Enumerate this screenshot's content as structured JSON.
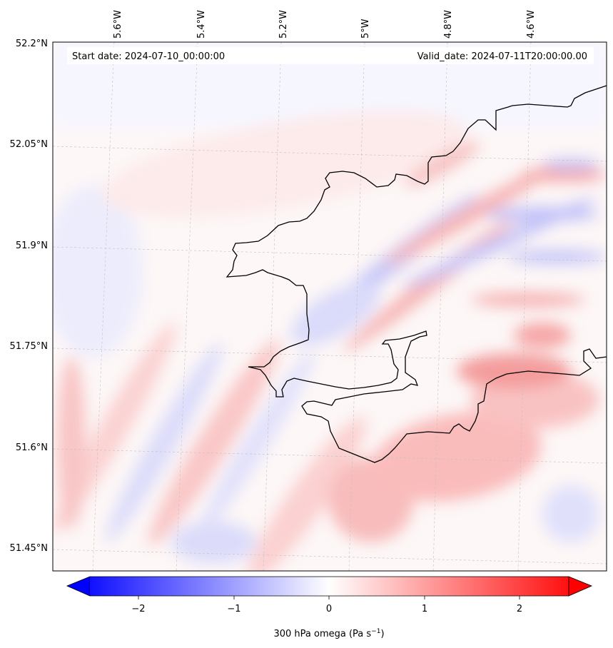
{
  "header": {
    "start_date": "Start date: 2024-07-10_00:00:00",
    "valid_date": "Valid_date: 2024-07-11T20:00:00.00"
  },
  "axes": {
    "lon_labels": [
      "5.6°W",
      "5.4°W",
      "5.2°W",
      "5°W",
      "4.8°W",
      "4.6°W"
    ],
    "lat_labels": [
      "52.2°N",
      "52.05°N",
      "51.9°N",
      "51.75°N",
      "51.6°N",
      "51.45°N"
    ]
  },
  "colorbar": {
    "label_prefix": "300 hPa omega (Pa s",
    "label_exp": "−1",
    "label_suffix": ")",
    "ticks": [
      "−2",
      "−1",
      "0",
      "1",
      "2"
    ],
    "range": [
      -2.7,
      2.5
    ],
    "colors": {
      "neg": "#0000ff",
      "mid": "#ffffff",
      "pos": "#ff0000"
    }
  }
}
